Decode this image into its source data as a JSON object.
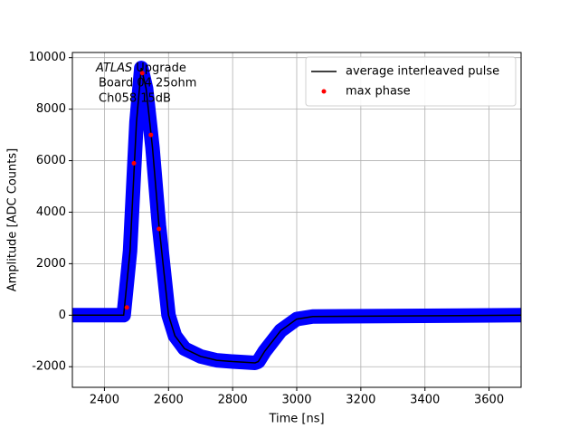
{
  "chart_data": {
    "type": "line",
    "xlabel": "Time [ns]",
    "ylabel": "Amplitude [ADC Counts]",
    "annotation": {
      "label": "ATLAS",
      "text": "Upgrade",
      "lines": [
        "Board 04 25ohm",
        "Ch058 15dB"
      ]
    },
    "xlim": [
      2300,
      3700
    ],
    "ylim": [
      -2800,
      10200
    ],
    "xticks": [
      2400,
      2600,
      2800,
      3000,
      3200,
      3400,
      3600
    ],
    "yticks": [
      -2000,
      0,
      2000,
      4000,
      6000,
      8000,
      10000
    ],
    "grid": true,
    "legend": "upper right",
    "series": [
      {
        "type": "band",
        "color": "#0000ff",
        "x": [
          2300,
          2460,
          2480,
          2500,
          2515,
          2530,
          2550,
          2570,
          2600,
          2620,
          2650,
          2700,
          2750,
          2800,
          2870,
          2880,
          2900,
          2950,
          3000,
          3050,
          3700
        ],
        "values": [
          0,
          0,
          2500,
          7500,
          9600,
          8800,
          6500,
          3500,
          0,
          -800,
          -1300,
          -1600,
          -1750,
          -1800,
          -1850,
          -1800,
          -1400,
          -600,
          -150,
          -50,
          0
        ]
      },
      {
        "type": "line",
        "name": "average interleaved pulse",
        "color": "#000000",
        "x": [
          2300,
          2460,
          2480,
          2500,
          2515,
          2530,
          2550,
          2570,
          2600,
          2620,
          2650,
          2700,
          2750,
          2800,
          2870,
          2880,
          2900,
          2950,
          3000,
          3050,
          3700
        ],
        "values": [
          0,
          0,
          2500,
          7500,
          9600,
          8800,
          6500,
          3500,
          0,
          -800,
          -1300,
          -1600,
          -1750,
          -1800,
          -1850,
          -1800,
          -1400,
          -600,
          -150,
          -50,
          0
        ]
      },
      {
        "type": "scatter",
        "name": "max phase",
        "color": "#ff0000",
        "x": [
          2470,
          2492,
          2518,
          2545,
          2570
        ],
        "values": [
          300,
          5900,
          9400,
          7000,
          3350
        ]
      }
    ]
  }
}
